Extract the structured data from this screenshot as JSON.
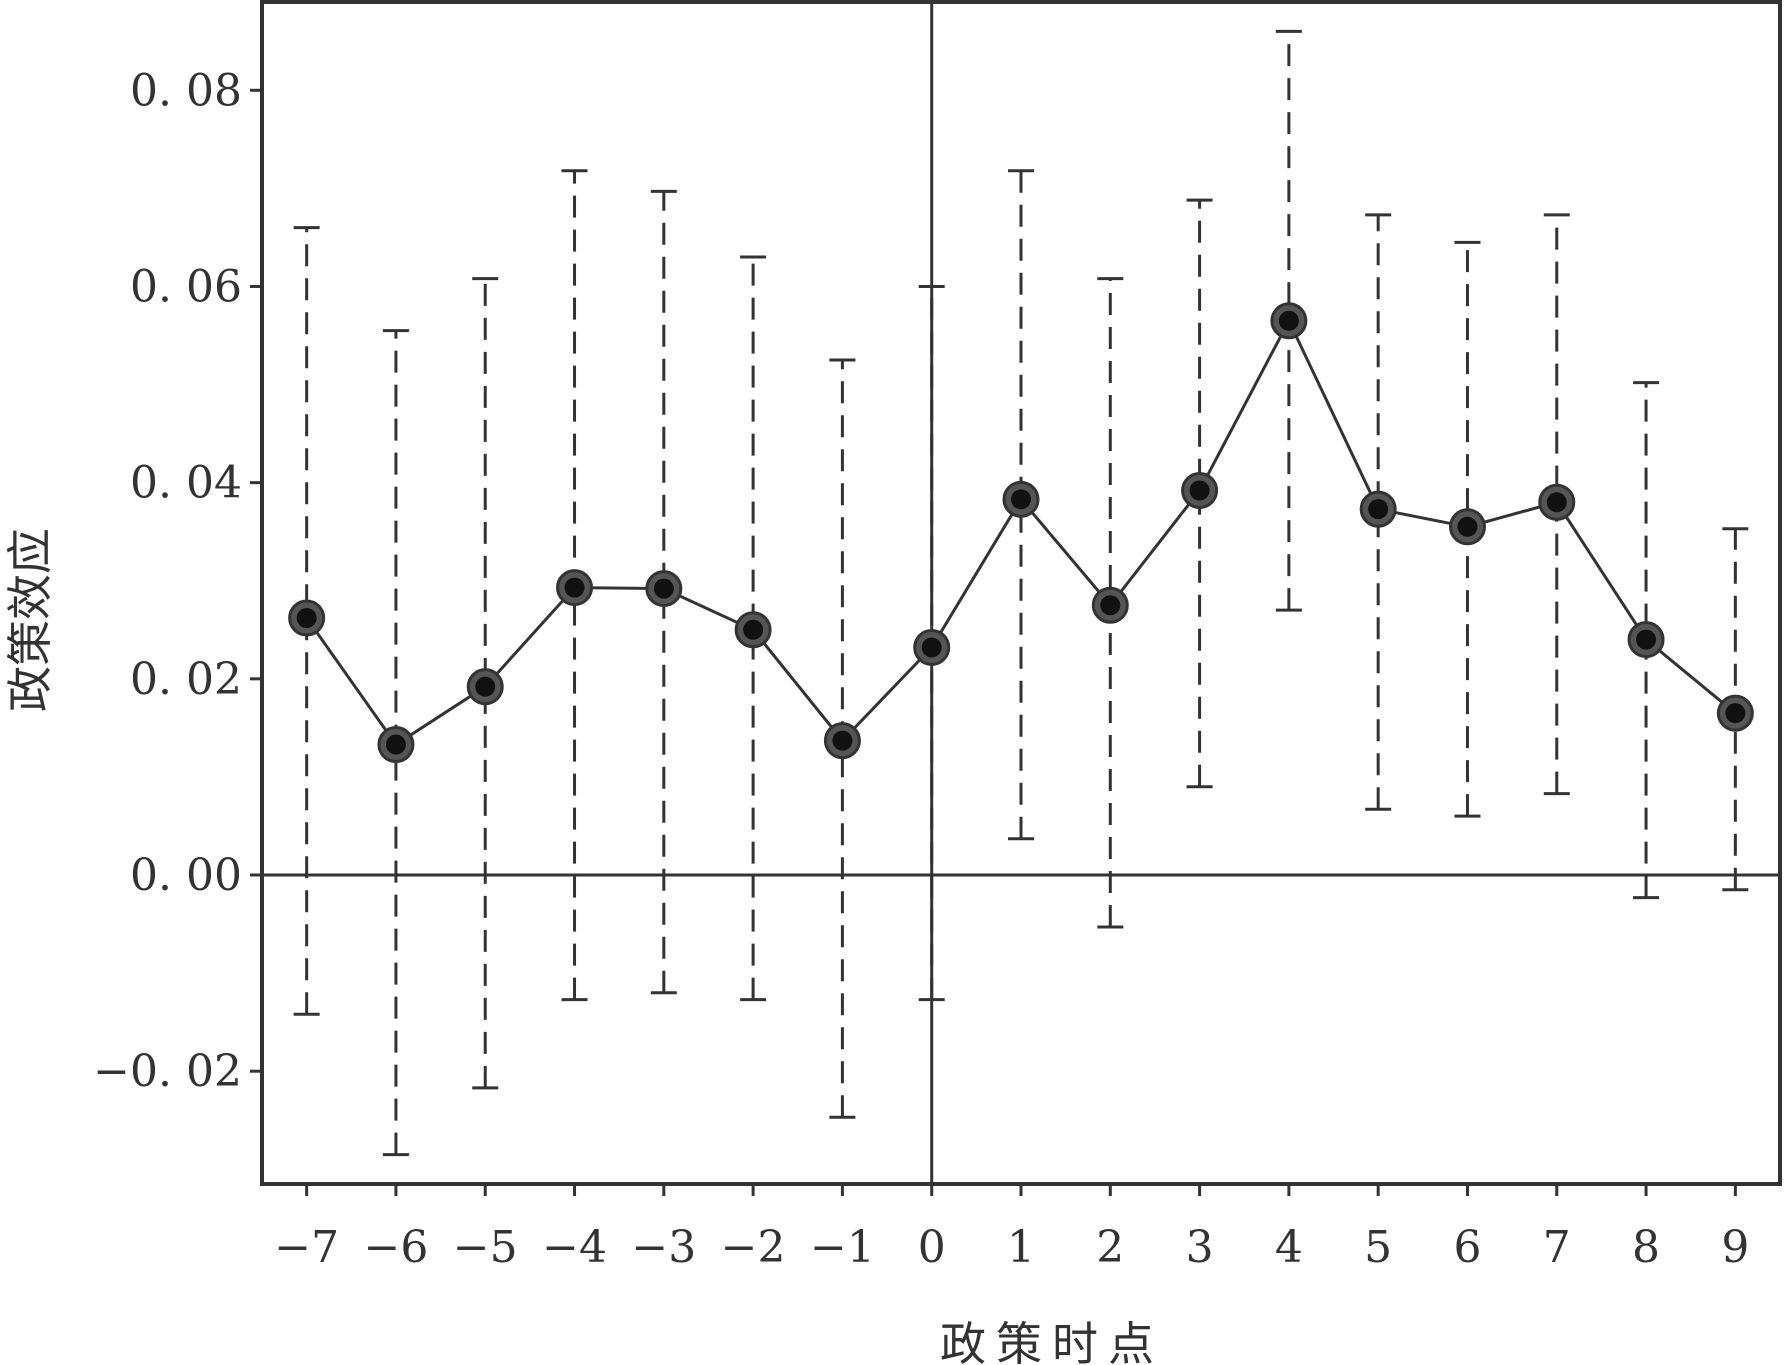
{
  "chart_data": {
    "type": "line",
    "xlabel": "政策时点",
    "ylabel": "政策效应",
    "x": [
      -7,
      -6,
      -5,
      -4,
      -3,
      -2,
      -1,
      0,
      1,
      2,
      3,
      4,
      5,
      6,
      7,
      8,
      9
    ],
    "x_tick_labels": [
      "−7",
      "−6",
      "−5",
      "−4",
      "−3",
      "−2",
      "−1",
      "0",
      "1",
      "2",
      "3",
      "4",
      "5",
      "6",
      "7",
      "8",
      "9"
    ],
    "xlim": [
      -7.5,
      9.5
    ],
    "ylim": [
      -0.0315,
      0.089
    ],
    "y_ticks": [
      -0.02,
      0.0,
      0.02,
      0.04,
      0.06,
      0.08
    ],
    "y_tick_labels": [
      "−0. 02",
      "0. 00",
      "0. 02",
      "0. 04",
      "0. 06",
      "0. 08"
    ],
    "series": [
      {
        "values": [
          0.0262,
          0.0133,
          0.0192,
          0.0293,
          0.0292,
          0.025,
          0.0137,
          0.0232,
          0.0383,
          0.0275,
          0.0392,
          0.0565,
          0.0373,
          0.0355,
          0.038,
          0.024,
          0.0165
        ],
        "ci_lower": [
          -0.0142,
          -0.0285,
          -0.0217,
          -0.0127,
          -0.012,
          -0.0127,
          -0.0247,
          -0.0127,
          0.0037,
          -0.0053,
          0.009,
          0.027,
          0.0067,
          0.006,
          0.0083,
          -0.0023,
          -0.0015
        ],
        "ci_upper": [
          0.066,
          0.0555,
          0.0608,
          0.0718,
          0.0697,
          0.063,
          0.0525,
          0.06,
          0.0718,
          0.0608,
          0.0688,
          0.086,
          0.0673,
          0.0645,
          0.0673,
          0.0502,
          0.0353
        ]
      }
    ],
    "reference_lines": {
      "horizontal_y": 0.0,
      "vertical_x": 0
    },
    "grid": false,
    "colors": {
      "line": "#333333",
      "marker": "#111111",
      "errorbar": "#333333"
    }
  }
}
